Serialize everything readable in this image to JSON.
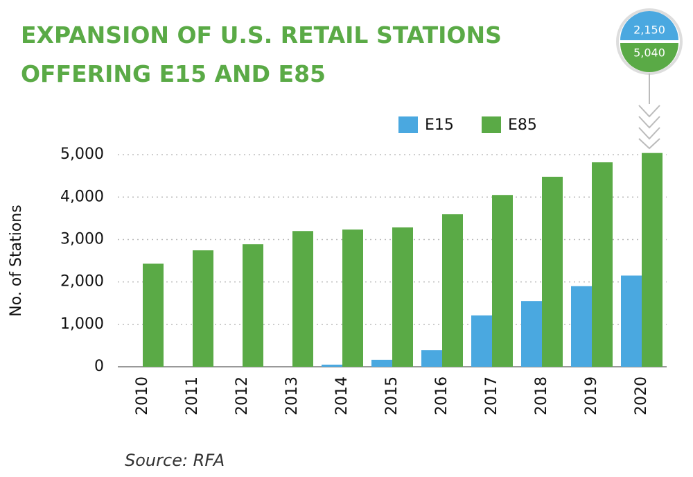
{
  "chart_data": {
    "type": "bar",
    "title": [
      "EXPANSION OF U.S. RETAIL STATIONS",
      "OFFERING E15 AND E85"
    ],
    "y_label": "No. of Stations",
    "source": "Source: RFA",
    "badge_labels": [
      "2,150",
      "5,040"
    ],
    "categories": [
      "2010",
      "2011",
      "2012",
      "2013",
      "2014",
      "2015",
      "2016",
      "2017",
      "2018",
      "2019",
      "2020"
    ],
    "series": [
      {
        "name": "E15",
        "color": "#4aa8e0",
        "values": [
          0,
          0,
          0,
          0,
          50,
          165,
          390,
          1210,
          1550,
          1900,
          2150
        ]
      },
      {
        "name": "E85",
        "color": "#5aaa46",
        "values": [
          2430,
          2745,
          2890,
          3200,
          3235,
          3285,
          3595,
          4050,
          4480,
          4820,
          5040
        ]
      }
    ],
    "ylim": [
      0,
      5100
    ],
    "yticks": [
      0,
      {
        "value": 1000,
        "label": "1,000"
      },
      {
        "value": 2000,
        "label": "2,000"
      },
      {
        "value": 3000,
        "label": "3,000"
      },
      {
        "value": 4000,
        "label": "4,000"
      },
      {
        "value": 5000,
        "label": "5,000"
      }
    ],
    "grid": true
  }
}
